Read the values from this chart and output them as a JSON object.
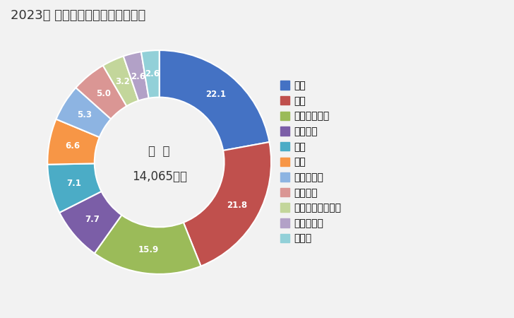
{
  "title": "2023年 輸出相手国のシェア（％）",
  "center_label_line1": "総  額",
  "center_label_line2": "14,065万円",
  "labels": [
    "中国",
    "韓国",
    "シンガポール",
    "オランダ",
    "タイ",
    "米国",
    "パキスタン",
    "ベトナム",
    "アラブ首長国連邦",
    "マレーシア",
    "その他"
  ],
  "values": [
    22.1,
    21.8,
    15.9,
    7.7,
    7.1,
    6.6,
    5.3,
    5.0,
    3.2,
    2.6,
    2.6
  ],
  "colors": [
    "#4472C4",
    "#C0504D",
    "#9BBB59",
    "#7B5EA7",
    "#4BACC6",
    "#F79646",
    "#8DB4E2",
    "#DA9694",
    "#C3D69B",
    "#B2A1C7",
    "#92D0D8"
  ],
  "background_color": "#F2F2F2",
  "title_fontsize": 13,
  "legend_fontsize": 10,
  "label_fontsize": 8.5
}
